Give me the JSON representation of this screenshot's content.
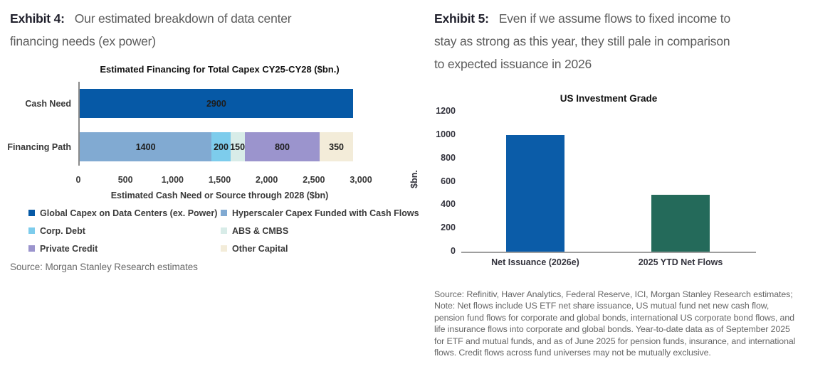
{
  "exhibit4": {
    "label": "Exhibit 4:",
    "title": "Our estimated breakdown of data center financing needs (ex power)",
    "source": "Source: Morgan Stanley Research estimates"
  },
  "exhibit5": {
    "label": "Exhibit 5:",
    "title": "Even if we assume flows to fixed income to stay as strong as this year, they still pale in comparison to expected issuance in 2026",
    "source": "Source: Refinitiv, Haver Analytics, Federal Reserve, ICI, Morgan Stanley Research estimates; Note: Net flows include US ETF net share issuance, US mutual fund net new cash flow, pension fund flows for corporate and global bonds, international US corporate bond flows, and life insurance flows into corporate and global bonds. Year-to-date data as of September 2025 for ETF and mutual funds, and as of June 2025 for pension funds, insurance, and international flows. Credit flows across fund universes may not be mutually exclusive."
  },
  "chart_data": [
    {
      "type": "bar",
      "orientation": "horizontal",
      "stacked": true,
      "title": "Estimated Financing for Total Capex CY25-CY28 ($bn.)",
      "xlabel": "Estimated Cash Need or Source through 2028 ($bn)",
      "xlim": [
        0,
        3000
      ],
      "xticks": [
        0,
        500,
        1000,
        1500,
        2000,
        2500,
        3000
      ],
      "xtick_labels": [
        "0",
        "500",
        "1,000",
        "1,500",
        "2,000",
        "2,500",
        "3,000"
      ],
      "grid": false,
      "legend_position": "bottom",
      "rows": [
        {
          "category": "Cash Need",
          "segments": [
            {
              "series": "Global Capex on Data Centers (ex. Power)",
              "value": 2900,
              "label": "2900",
              "color": "#0659a6"
            }
          ]
        },
        {
          "category": "Financing Path",
          "segments": [
            {
              "series": "Hyperscaler Capex Funded with Cash Flows",
              "value": 1400,
              "label": "1400",
              "color": "#81aad2"
            },
            {
              "series": "Corp. Debt",
              "value": 200,
              "label": "200",
              "color": "#7dccec"
            },
            {
              "series": "ABS & CMBS",
              "value": 150,
              "label": "150",
              "color": "#d8ece8"
            },
            {
              "series": "Private Credit",
              "value": 800,
              "label": "800",
              "color": "#9b94cd"
            },
            {
              "series": "Other Capital",
              "value": 350,
              "label": "350",
              "color": "#f3ecd9"
            }
          ]
        }
      ],
      "legend": [
        {
          "label": "Global Capex on Data Centers (ex. Power)",
          "color": "#0659a6"
        },
        {
          "label": "Hyperscaler Capex Funded with Cash Flows",
          "color": "#81aad2"
        },
        {
          "label": "Corp. Debt",
          "color": "#7dccec"
        },
        {
          "label": "ABS & CMBS",
          "color": "#d8ece8"
        },
        {
          "label": "Private Credit",
          "color": "#9b94cd"
        },
        {
          "label": "Other Capital",
          "color": "#f3ecd9"
        }
      ]
    },
    {
      "type": "bar",
      "orientation": "vertical",
      "title": "US Investment Grade",
      "ylabel": "$bn.",
      "ylim": [
        0,
        1200
      ],
      "yticks": [
        0,
        200,
        400,
        600,
        800,
        1000,
        1200
      ],
      "ytick_labels": [
        "0",
        "200",
        "400",
        "600",
        "800",
        "1000",
        "1200"
      ],
      "grid": false,
      "categories": [
        "Net Issuance (2026e)",
        "2025 YTD Net Flows"
      ],
      "values": [
        1000,
        490
      ],
      "colors": [
        "#0b5ca8",
        "#246a5a"
      ]
    }
  ]
}
